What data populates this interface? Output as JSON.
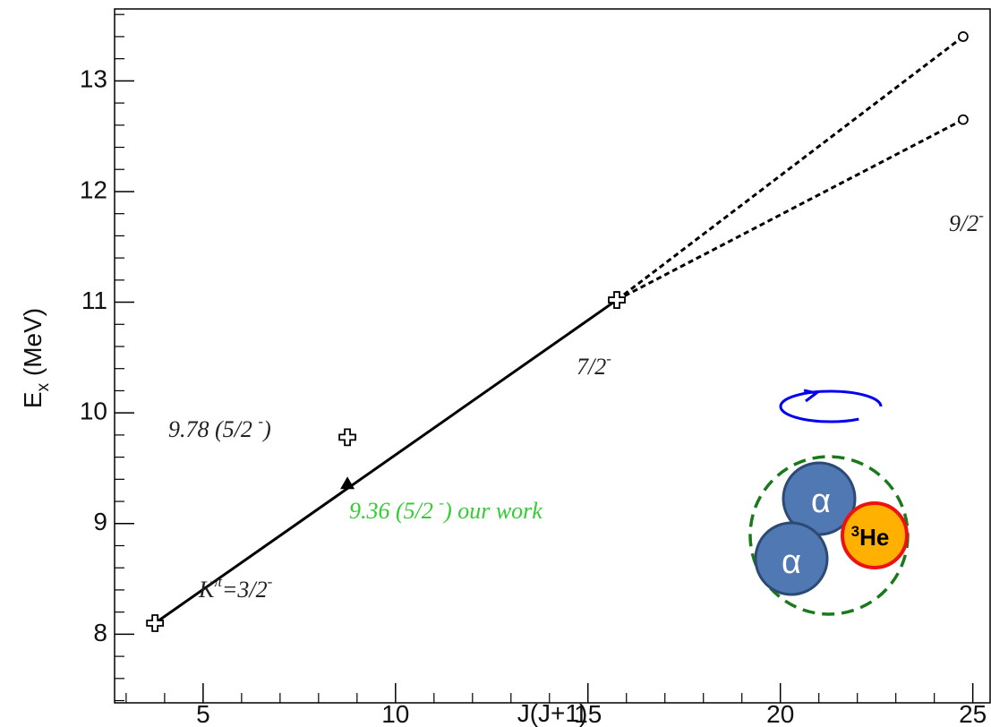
{
  "chart_data": {
    "type": "scatter",
    "xlabel": "J(J+1)",
    "ylabel": [
      "E",
      "x",
      " (MeV)"
    ],
    "xlim": [
      2.7,
      25.45
    ],
    "ylim": [
      7.38,
      13.65
    ],
    "xticks": [
      5,
      10,
      15,
      20,
      25
    ],
    "yticks": [
      8,
      9,
      10,
      11,
      12,
      13
    ],
    "xminor": [
      3,
      4,
      6,
      7,
      8,
      9,
      11,
      12,
      13,
      14,
      16,
      17,
      18,
      19,
      21,
      22,
      23,
      24
    ],
    "yminor": [
      7.4,
      7.6,
      7.8,
      8.2,
      8.4,
      8.6,
      8.8,
      9.2,
      9.4,
      9.6,
      9.8,
      10.2,
      10.4,
      10.6,
      10.8,
      11.2,
      11.4,
      11.6,
      11.8,
      12.2,
      12.4,
      12.6,
      12.8,
      13.2,
      13.4,
      13.6
    ],
    "literature": {
      "x": [
        3.75,
        8.75,
        15.75
      ],
      "y": [
        8.1,
        9.78,
        11.02
      ]
    },
    "our_work": {
      "x": [
        8.75
      ],
      "y": [
        9.36
      ],
      "color": "#000000"
    },
    "predicted": {
      "x": [
        24.75,
        24.75
      ],
      "y": [
        13.4,
        12.65
      ]
    },
    "annotations": [
      [
        "9.78 (5/2 ",
        "-",
        ")"
      ],
      [
        "9.36 (5/2 ",
        "-",
        ") our work"
      ],
      [
        "7/2",
        "-"
      ],
      [
        "9/2",
        "-"
      ],
      [
        "K",
        "π",
        "=3/2",
        "-"
      ]
    ],
    "annotation_colors": [
      "#222222",
      "#33cc33",
      "#222222",
      "#222222",
      "#222222"
    ],
    "inset": {
      "alpha": [
        "α",
        "α"
      ],
      "helium": [
        "3",
        "He"
      ]
    }
  }
}
